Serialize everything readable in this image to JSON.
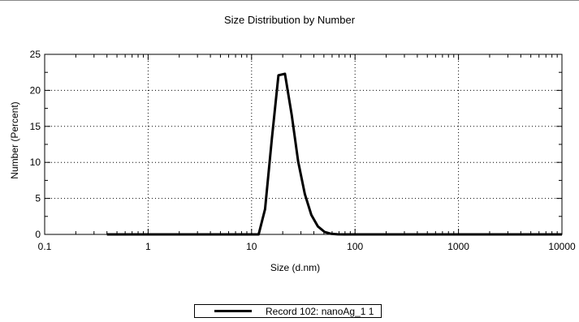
{
  "chart_data": {
    "type": "line",
    "title": "Size Distribution by Number",
    "xlabel": "Size (d.nm)",
    "ylabel": "Number (Percent)",
    "xscale": "log",
    "xlim": [
      0.1,
      10000
    ],
    "ylim": [
      0,
      25
    ],
    "xticks": [
      "0.1",
      "1",
      "10",
      "100",
      "1000",
      "10000"
    ],
    "yticks": [
      "0",
      "5",
      "10",
      "15",
      "20",
      "25"
    ],
    "grid": true,
    "legend_position": "bottom-center",
    "series": [
      {
        "name": "Record 102: nanoAg_1 1",
        "color": "#000000",
        "x": [
          0.4,
          1,
          5,
          11.7,
          13.5,
          15.7,
          18.2,
          21.0,
          24.4,
          28.2,
          32.7,
          37.8,
          43.8,
          50.7,
          58.8,
          68.1,
          78.8,
          100,
          1000,
          10000
        ],
        "y": [
          0,
          0,
          0,
          0,
          3.5,
          13.3,
          22.1,
          22.3,
          16.6,
          10.1,
          5.6,
          2.7,
          1.1,
          0.35,
          0.08,
          0.01,
          0,
          0,
          0,
          0
        ]
      }
    ]
  }
}
